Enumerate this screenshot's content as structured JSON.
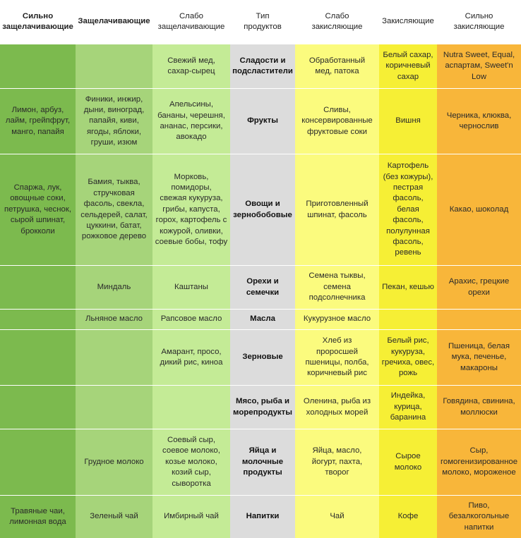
{
  "headers": [
    "Сильно\nзащелачивающие",
    "Защелачивающие",
    "Слабо\nзащелачивающие",
    "Тип\nпродуктов",
    "Слабо\nзакисляющие",
    "Закисляющие",
    "Сильно\nзакисляющие"
  ],
  "rows": [
    {
      "type": "Сладости и\nподсластители",
      "cells": [
        "",
        "",
        "Свежий мед,\nсахар-сырец",
        "Обработанный\nмед, патока",
        "Белый сахар,\nкоричневый\nсахар",
        "Nutra Sweet, Equal,\nаспартам, Sweet'n\nLow"
      ]
    },
    {
      "type": "Фрукты",
      "cells": [
        "Лимон, арбуз,\nлайм, грейпфрут,\nманго, папайя",
        "Финики, инжир,\nдыни, виноград,\nпапайя, киви,\nягоды, яблоки,\nгруши, изюм",
        "Апельсины,\nбананы, черешня,\nананас, персики,\nавокадо",
        "Сливы,\nконсервированные\nфруктовые соки",
        "Вишня",
        "Черника, клюква,\nчернослив"
      ]
    },
    {
      "type": "Овощи и\nзернобобовые",
      "cells": [
        "Спаржа, лук,\nовощные соки,\nпетрушка, чеснок,\nсырой шпинат,\nброкколи",
        "Бамия, тыква,\nстручковая\nфасоль, свекла,\nсельдерей, салат,\nцуккини, батат,\nрожковое дерево",
        "Морковь,\nпомидоры,\nсвежая кукуруза,\nгрибы, капуста,\nгорох, картофель с\nкожурой, оливки,\nсоевые бобы, тофу",
        "Приготовленный\nшпинат, фасоль",
        "Картофель\n(без кожуры),\nпестрая\nфасоль,\nбелая\nфасоль,\nполулунная\nфасоль,\nревень",
        "Какао, шоколад"
      ]
    },
    {
      "type": "Орехи и\nсемечки",
      "cells": [
        "",
        "Миндаль",
        "Каштаны",
        "Семена тыквы,\nсемена\nподсолнечника",
        "Пекан, кешью",
        "Арахис, грецкие\nорехи"
      ]
    },
    {
      "type": "Масла",
      "cells": [
        "",
        "Льняное масло",
        "Рапсовое масло",
        "Кукурузное масло",
        "",
        ""
      ]
    },
    {
      "type": "Зерновые",
      "cells": [
        "",
        "",
        "Амарант, просо,\nдикий рис, киноа",
        "Хлеб из\nпроросшей\nпшеницы, полба,\nкоричневый рис",
        "Белый рис,\nкукуруза,\nгречиха, овес,\nрожь",
        "Пшеница, белая\nмука, печенье,\nмакароны"
      ]
    },
    {
      "type": "Мясо, рыба и\nморепродукты",
      "cells": [
        "",
        "",
        "",
        "Оленина, рыба из\nхолодных морей",
        "Индейка,\nкурица,\nбаранина",
        "Говядина, свинина,\nмоллюски"
      ]
    },
    {
      "type": "Яйца и\nмолочные\nпродукты",
      "cells": [
        "",
        "Грудное молоко",
        "Соевый сыр,\nсоевое молоко,\nкозье молоко,\nкозий сыр,\nсыворотка",
        "Яйца, масло,\nйогурт, пахта,\nтворог",
        "Сырое\nмолоко",
        "Сыр,\nгомогенизированное\nмолоко, мороженое"
      ]
    },
    {
      "type": "Напитки",
      "cells": [
        "Травяные чаи,\nлимонная вода",
        "Зеленый чай",
        "Имбирный чай",
        "Чай",
        "Кофе",
        "Пиво,\nбезалкогольные\nнапитки"
      ]
    }
  ]
}
